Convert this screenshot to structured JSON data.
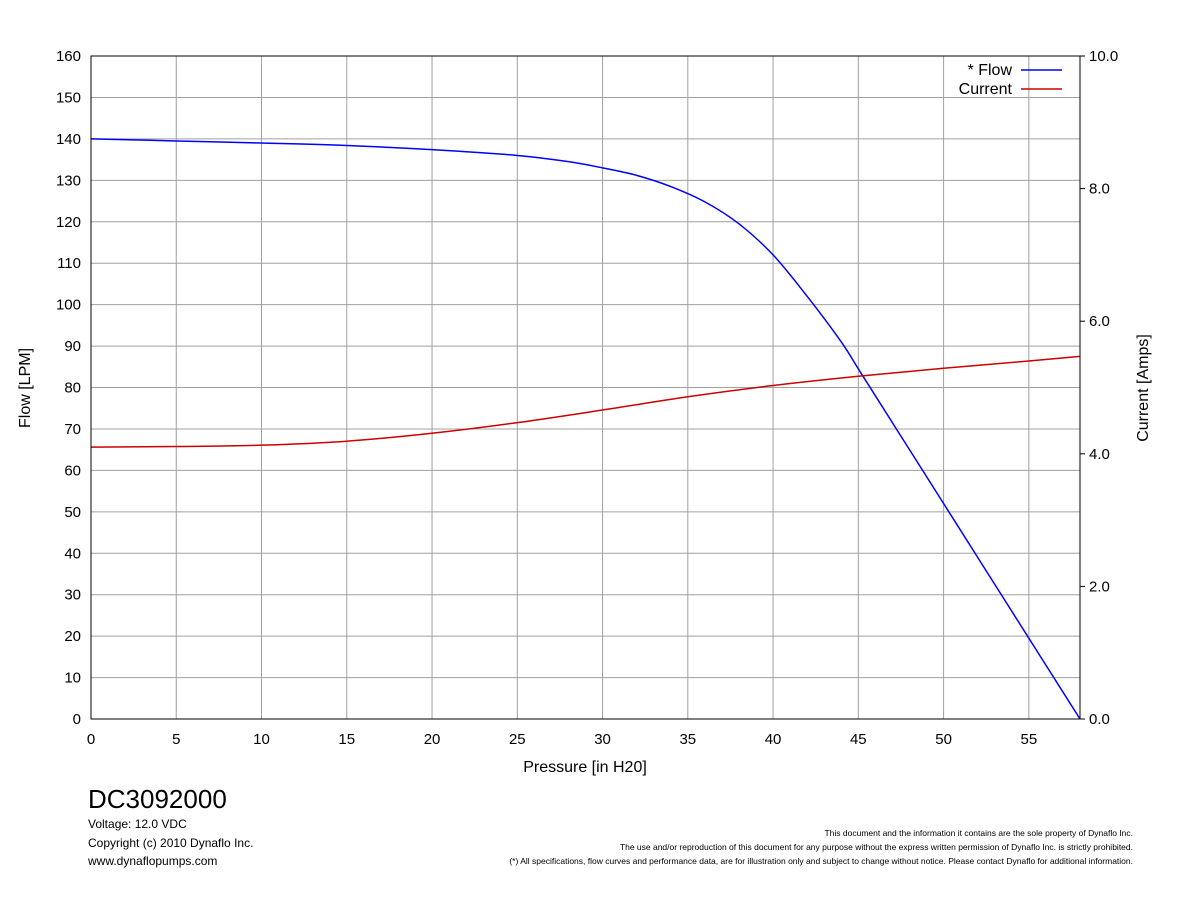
{
  "chart_data": {
    "type": "line",
    "xlabel": "Pressure [in H20]",
    "ylabel_left": "Flow [LPM]",
    "ylabel_right": "Current [Amps]",
    "xlim": [
      0,
      58
    ],
    "ylim_left": [
      0,
      160
    ],
    "ylim_right": [
      0,
      10
    ],
    "xticks": [
      "0",
      "5",
      "10",
      "15",
      "20",
      "25",
      "30",
      "35",
      "40",
      "45",
      "50",
      "55"
    ],
    "yticks_left": [
      "0",
      "10",
      "20",
      "30",
      "40",
      "50",
      "60",
      "70",
      "80",
      "90",
      "100",
      "110",
      "120",
      "130",
      "140",
      "150",
      "160"
    ],
    "yticks_right": [
      "0.0",
      "2.0",
      "4.0",
      "6.0",
      "8.0",
      "10.0"
    ],
    "grid": true,
    "legend_position": "top-right",
    "series": [
      {
        "name": "* Flow",
        "axis": "left",
        "color": "#0000ff",
        "x": [
          0,
          5,
          10,
          15,
          20,
          25,
          28,
          30,
          32,
          34,
          36,
          38,
          40,
          42,
          44,
          45,
          46,
          48,
          50,
          52,
          54,
          56,
          58
        ],
        "y": [
          140,
          139.5,
          139,
          138.4,
          137.4,
          136,
          134.5,
          133,
          131.2,
          128.5,
          124.8,
          119.5,
          112,
          102,
          91,
          84.5,
          78,
          65,
          52,
          39,
          26,
          13,
          0
        ]
      },
      {
        "name": "Current",
        "axis": "right",
        "color": "#cc0000",
        "x": [
          0,
          5,
          10,
          15,
          20,
          25,
          30,
          35,
          40,
          45,
          50,
          55,
          58
        ],
        "y": [
          4.1,
          4.11,
          4.13,
          4.19,
          4.31,
          4.47,
          4.66,
          4.86,
          5.03,
          5.17,
          5.29,
          5.4,
          5.47
        ]
      }
    ]
  },
  "footer": {
    "model": "DC3092000",
    "voltage": "Voltage: 12.0 VDC",
    "copyright": "Copyright (c) 2010 Dynaflo Inc.",
    "website": "www.dynaflopumps.com",
    "legal_line_1": "This document and the information it contains are the sole property of Dynaflo Inc.",
    "legal_line_2": "The use and/or reproduction of this document for any purpose without the express written permission of Dynaflo Inc. is strictly prohibited.",
    "legal_line_3": "(*) All specifications, flow curves and performance data, are for illustration only and subject to change without notice. Please contact Dynaflo for additional information."
  }
}
